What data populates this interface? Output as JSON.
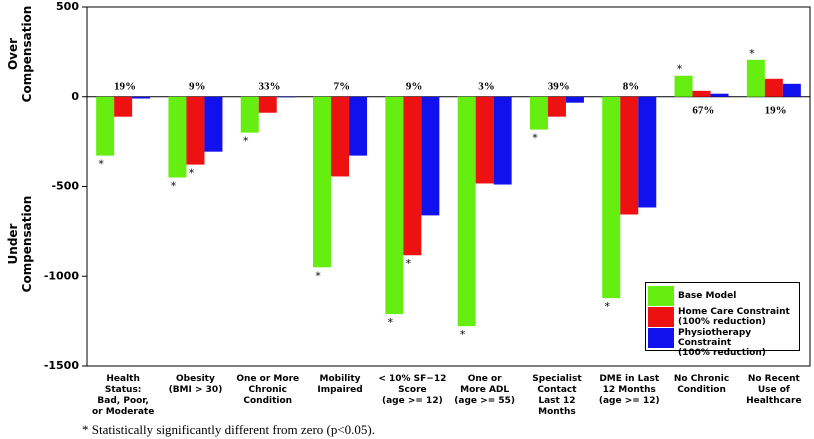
{
  "chart_data": {
    "type": "bar",
    "y_label_over": "Over\nCompensation",
    "y_label_under": "Under\nCompensation",
    "categories": [
      "Health Status:\nBad, Poor,\nor Moderate",
      "Obesity\n(BMI > 30)",
      "One or More\nChronic\nCondition",
      "Mobility\nImpaired",
      "< 10% SF−12\nScore\n(age >= 12)",
      "One or\nMore ADL\n(age >= 55)",
      "Specialist\nContact\nLast 12 Months",
      "DME in Last\n12 Months\n(age >= 12)",
      "No Chronic\nCondition",
      "No Recent\nUse of\nHealthcare"
    ],
    "percent_labels": [
      "19%",
      "9%",
      "33%",
      "7%",
      "9%",
      "3%",
      "39%",
      "8%",
      "67%",
      "19%"
    ],
    "series": [
      {
        "name": "Base Model",
        "color": "#66ee11",
        "values": [
          -328,
          -450,
          -200,
          -950,
          -1211,
          -1278,
          -183,
          -1122,
          117,
          206
        ],
        "significance": [
          "*",
          "*",
          "*",
          "*",
          "*",
          "*",
          "*",
          "*",
          "*",
          "*"
        ]
      },
      {
        "name": "Home Care Constraint\n(100% reduction)",
        "color": "#ee1111",
        "values": [
          -111,
          -378,
          -89,
          -444,
          -883,
          -483,
          -111,
          -656,
          33,
          100
        ],
        "significance": [
          null,
          "*",
          null,
          null,
          "*",
          null,
          null,
          null,
          null,
          null
        ]
      },
      {
        "name": "Physiotherapy Constraint\n(100% reduction)",
        "color": "#1111ee",
        "values": [
          -10,
          -306,
          -3,
          -328,
          -661,
          -489,
          -33,
          -617,
          17,
          72
        ],
        "significance": [
          null,
          null,
          null,
          null,
          null,
          null,
          null,
          null,
          null,
          null
        ]
      }
    ],
    "ylim": [
      -1500,
      500
    ],
    "yticks": [
      -1500,
      -1000,
      -500,
      0,
      500
    ],
    "legend": "lower right",
    "footnote": "* Statistically significantly different from zero (p<0.05)."
  }
}
